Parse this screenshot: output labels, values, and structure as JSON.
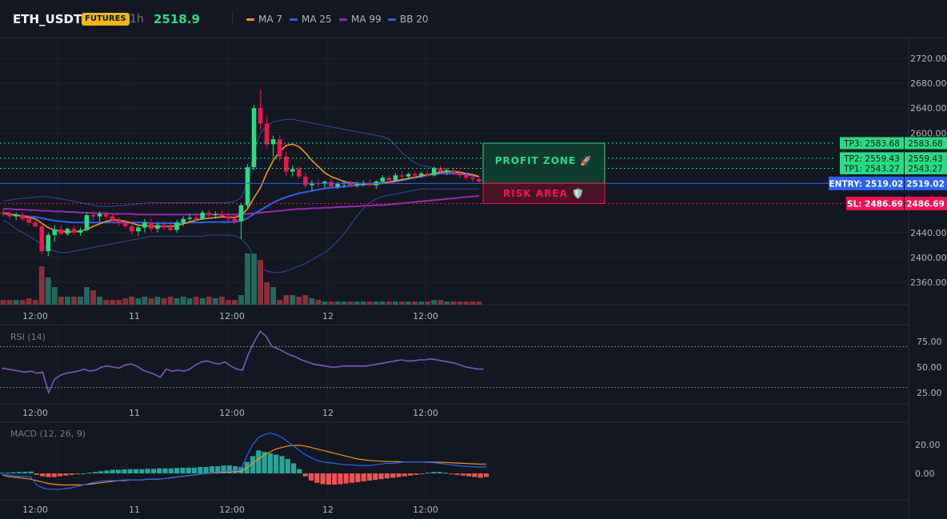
{
  "header": {
    "symbol": "ETH_USDT",
    "market_badge": "FUTURES",
    "interval": "1h",
    "last_price": "2518.9",
    "indicators": [
      {
        "label": "MA 7",
        "color": "#f7931a"
      },
      {
        "label": "MA 25",
        "color": "#2962ff"
      },
      {
        "label": "MA 99",
        "color": "#9c27b0"
      },
      {
        "label": "BB 20",
        "color": "#1e3a8a"
      }
    ]
  },
  "colors": {
    "background": "#131722",
    "up": "#26a69a",
    "up_bright": "#26de81",
    "down": "#ef5350",
    "down_bright": "#f6114f",
    "grid": "#1e2230",
    "entry": "#2962ff",
    "tp": "#26de81",
    "sl": "#f6114f"
  },
  "price_axis": {
    "ticks": [
      "2720.00",
      "2680.00",
      "2640.00",
      "2600.00",
      "2440.00",
      "2400.00",
      "2360.00"
    ],
    "tick_values": [
      2720,
      2680,
      2640,
      2600,
      2440,
      2400,
      2360
    ]
  },
  "time_axis": {
    "labels": [
      "12:00",
      "11",
      "12:00",
      "12",
      "12:00"
    ]
  },
  "trade": {
    "tp3_label": "TP3: 2583.68",
    "tp3_price": "2583.68",
    "tp3": 2583.68,
    "tp2_label": "TP2: 2559.43",
    "tp2_price": "2559.43",
    "tp2": 2559.43,
    "tp1_label": "TP1: 2543.27",
    "tp1_price": "2543.27",
    "tp1": 2543.27,
    "entry_label": "ENTRY: 2519.02",
    "entry_price": "2519.02",
    "entry": 2519.02,
    "sl_label": "SL: 2486.69",
    "sl_price": "2486.69",
    "sl": 2486.69,
    "profit_zone_label": "PROFIT ZONE 🚀",
    "risk_area_label": "RISK AREA 🛡️"
  },
  "rsi": {
    "title": "RSI (14)",
    "ticks": [
      "75.00",
      "50.00",
      "25.00"
    ],
    "overbought": 70,
    "oversold": 30,
    "values": [
      49,
      48,
      47,
      46,
      45,
      46,
      44,
      45,
      25,
      38,
      42,
      44,
      45,
      46,
      48,
      46,
      47,
      50,
      51,
      50,
      49,
      52,
      53,
      51,
      47,
      45,
      43,
      40,
      48,
      46,
      47,
      46,
      48,
      52,
      55,
      56,
      54,
      53,
      55,
      51,
      48,
      47,
      63,
      75,
      85,
      80,
      70,
      68,
      65,
      62,
      60,
      57,
      55,
      53,
      52,
      51,
      50,
      50,
      51,
      51,
      51,
      51,
      51,
      52,
      53,
      54,
      55,
      56,
      57,
      56,
      56,
      57,
      57,
      58,
      57,
      56,
      55,
      54,
      52,
      50,
      49,
      48,
      48
    ]
  },
  "macd": {
    "title": "MACD (12, 26, 9)",
    "ticks": [
      "20.00",
      "0.00"
    ],
    "macd_line": [
      -1,
      -1,
      -1.5,
      -2,
      -2,
      -2.5,
      -8,
      -10,
      -11,
      -11,
      -11,
      -10.5,
      -10,
      -9,
      -8,
      -7,
      -6,
      -5.5,
      -5,
      -5,
      -5,
      -4.5,
      -4.5,
      -4.5,
      -4.5,
      -4,
      -4,
      -4,
      -3.5,
      -3,
      -2.5,
      -2,
      -1.5,
      -1,
      -0.5,
      0,
      0.5,
      1,
      1.5,
      1.5,
      2,
      3,
      12,
      20,
      25,
      27,
      28,
      27,
      25,
      22,
      19,
      16,
      13,
      11,
      9,
      8,
      7.5,
      7,
      6.5,
      6,
      6,
      5.5,
      5.5,
      5.5,
      6,
      6.5,
      7,
      7,
      7.5,
      8,
      8,
      8,
      8,
      7.8,
      7.5,
      7,
      6.5,
      6,
      5.5,
      5,
      4.8,
      4.5,
      4.5,
      4.5
    ],
    "signal_line": [
      -1,
      -2,
      -2.5,
      -3,
      -3.5,
      -4,
      -5,
      -6,
      -7,
      -7.5,
      -8,
      -8,
      -8,
      -8,
      -8,
      -7.5,
      -7,
      -6.5,
      -6,
      -5.5,
      -5,
      -5,
      -4.5,
      -4.5,
      -4.5,
      -4,
      -4,
      -4,
      -3.5,
      -3,
      -2.5,
      -2,
      -1.5,
      -1,
      -0.5,
      0,
      0.3,
      0.6,
      1,
      1,
      1.2,
      1.5,
      4,
      7,
      10,
      13,
      15,
      17,
      18,
      19,
      19.5,
      19.5,
      19,
      18,
      17,
      16,
      15,
      14,
      13,
      12,
      11,
      10,
      9.5,
      9,
      8.8,
      8.5,
      8.3,
      8.2,
      8.1,
      8,
      8,
      8,
      8,
      8,
      7.9,
      7.8,
      7.6,
      7.4,
      7.2,
      7,
      6.8,
      6.6,
      6.5,
      6.5
    ],
    "histogram": [
      0.5,
      0.5,
      0.8,
      1,
      1.2,
      1.3,
      -1,
      -2,
      -2.5,
      -2.5,
      -2,
      -1.5,
      -1,
      -0.5,
      0,
      0.5,
      1,
      1.5,
      2,
      2.5,
      2.5,
      2.8,
      3,
      3,
      3,
      3.2,
      3.2,
      3.5,
      3.5,
      3.5,
      3.8,
      4,
      4,
      4,
      4.5,
      4.5,
      5,
      5,
      5.5,
      5.5,
      5,
      4.5,
      8,
      12,
      16,
      15,
      14,
      13,
      12,
      10,
      7,
      3,
      -2,
      -5,
      -6.5,
      -7.5,
      -7.8,
      -7.8,
      -7.5,
      -7,
      -6.5,
      -6,
      -5.5,
      -5,
      -4.5,
      -4,
      -3.5,
      -3,
      -2.5,
      -2,
      -1.5,
      -1,
      -0.5,
      0.5,
      1,
      1,
      0.5,
      -0.5,
      -1,
      -1.5,
      -2,
      -2.5,
      -3,
      -2.5
    ]
  },
  "candles": [
    {
      "o": 2472,
      "h": 2478,
      "l": 2466,
      "c": 2470
    },
    {
      "o": 2470,
      "h": 2475,
      "l": 2462,
      "c": 2466
    },
    {
      "o": 2466,
      "h": 2472,
      "l": 2460,
      "c": 2468
    },
    {
      "o": 2468,
      "h": 2472,
      "l": 2458,
      "c": 2462
    },
    {
      "o": 2462,
      "h": 2466,
      "l": 2452,
      "c": 2456
    },
    {
      "o": 2456,
      "h": 2460,
      "l": 2448,
      "c": 2450
    },
    {
      "o": 2450,
      "h": 2456,
      "l": 2405,
      "c": 2410
    },
    {
      "o": 2410,
      "h": 2440,
      "l": 2402,
      "c": 2436
    },
    {
      "o": 2436,
      "h": 2452,
      "l": 2425,
      "c": 2445
    },
    {
      "o": 2445,
      "h": 2452,
      "l": 2436,
      "c": 2438
    },
    {
      "o": 2438,
      "h": 2448,
      "l": 2435,
      "c": 2446
    },
    {
      "o": 2446,
      "h": 2452,
      "l": 2436,
      "c": 2440
    },
    {
      "o": 2440,
      "h": 2448,
      "l": 2435,
      "c": 2444
    },
    {
      "o": 2444,
      "h": 2472,
      "l": 2442,
      "c": 2468
    },
    {
      "o": 2468,
      "h": 2475,
      "l": 2460,
      "c": 2466
    },
    {
      "o": 2466,
      "h": 2474,
      "l": 2458,
      "c": 2470
    },
    {
      "o": 2470,
      "h": 2474,
      "l": 2462,
      "c": 2466
    },
    {
      "o": 2466,
      "h": 2470,
      "l": 2456,
      "c": 2460
    },
    {
      "o": 2460,
      "h": 2464,
      "l": 2450,
      "c": 2456
    },
    {
      "o": 2456,
      "h": 2460,
      "l": 2446,
      "c": 2450
    },
    {
      "o": 2450,
      "h": 2458,
      "l": 2436,
      "c": 2442
    },
    {
      "o": 2442,
      "h": 2452,
      "l": 2434,
      "c": 2448
    },
    {
      "o": 2448,
      "h": 2462,
      "l": 2440,
      "c": 2456
    },
    {
      "o": 2456,
      "h": 2462,
      "l": 2442,
      "c": 2446
    },
    {
      "o": 2446,
      "h": 2456,
      "l": 2440,
      "c": 2452
    },
    {
      "o": 2452,
      "h": 2458,
      "l": 2444,
      "c": 2448
    },
    {
      "o": 2448,
      "h": 2456,
      "l": 2442,
      "c": 2444
    },
    {
      "o": 2444,
      "h": 2460,
      "l": 2440,
      "c": 2456
    },
    {
      "o": 2456,
      "h": 2466,
      "l": 2450,
      "c": 2462
    },
    {
      "o": 2462,
      "h": 2470,
      "l": 2456,
      "c": 2464
    },
    {
      "o": 2464,
      "h": 2470,
      "l": 2458,
      "c": 2462
    },
    {
      "o": 2462,
      "h": 2476,
      "l": 2460,
      "c": 2472
    },
    {
      "o": 2472,
      "h": 2476,
      "l": 2464,
      "c": 2468
    },
    {
      "o": 2468,
      "h": 2474,
      "l": 2462,
      "c": 2470
    },
    {
      "o": 2470,
      "h": 2476,
      "l": 2464,
      "c": 2466
    },
    {
      "o": 2466,
      "h": 2472,
      "l": 2458,
      "c": 2462
    },
    {
      "o": 2462,
      "h": 2468,
      "l": 2454,
      "c": 2458
    },
    {
      "o": 2458,
      "h": 2488,
      "l": 2430,
      "c": 2484
    },
    {
      "o": 2484,
      "h": 2550,
      "l": 2478,
      "c": 2545
    },
    {
      "o": 2545,
      "h": 2645,
      "l": 2540,
      "c": 2640
    },
    {
      "o": 2640,
      "h": 2670,
      "l": 2605,
      "c": 2615
    },
    {
      "o": 2615,
      "h": 2628,
      "l": 2575,
      "c": 2582
    },
    {
      "o": 2582,
      "h": 2596,
      "l": 2562,
      "c": 2590
    },
    {
      "o": 2590,
      "h": 2596,
      "l": 2555,
      "c": 2562
    },
    {
      "o": 2562,
      "h": 2570,
      "l": 2530,
      "c": 2538
    },
    {
      "o": 2538,
      "h": 2548,
      "l": 2530,
      "c": 2542
    },
    {
      "o": 2542,
      "h": 2546,
      "l": 2526,
      "c": 2530
    },
    {
      "o": 2530,
      "h": 2536,
      "l": 2512,
      "c": 2516
    },
    {
      "o": 2516,
      "h": 2524,
      "l": 2508,
      "c": 2520
    },
    {
      "o": 2520,
      "h": 2526,
      "l": 2514,
      "c": 2518
    },
    {
      "o": 2518,
      "h": 2524,
      "l": 2512,
      "c": 2522
    },
    {
      "o": 2522,
      "h": 2526,
      "l": 2512,
      "c": 2514
    },
    {
      "o": 2514,
      "h": 2522,
      "l": 2510,
      "c": 2518
    },
    {
      "o": 2518,
      "h": 2524,
      "l": 2512,
      "c": 2520
    },
    {
      "o": 2520,
      "h": 2524,
      "l": 2512,
      "c": 2516
    },
    {
      "o": 2516,
      "h": 2522,
      "l": 2512,
      "c": 2518
    },
    {
      "o": 2518,
      "h": 2524,
      "l": 2514,
      "c": 2520
    },
    {
      "o": 2520,
      "h": 2526,
      "l": 2514,
      "c": 2516
    },
    {
      "o": 2516,
      "h": 2524,
      "l": 2510,
      "c": 2522
    },
    {
      "o": 2522,
      "h": 2532,
      "l": 2518,
      "c": 2528
    },
    {
      "o": 2528,
      "h": 2532,
      "l": 2520,
      "c": 2524
    },
    {
      "o": 2524,
      "h": 2536,
      "l": 2522,
      "c": 2532
    },
    {
      "o": 2532,
      "h": 2538,
      "l": 2526,
      "c": 2530
    },
    {
      "o": 2530,
      "h": 2536,
      "l": 2526,
      "c": 2534
    },
    {
      "o": 2534,
      "h": 2538,
      "l": 2528,
      "c": 2532
    },
    {
      "o": 2532,
      "h": 2538,
      "l": 2528,
      "c": 2535
    },
    {
      "o": 2535,
      "h": 2540,
      "l": 2530,
      "c": 2532
    },
    {
      "o": 2532,
      "h": 2546,
      "l": 2530,
      "c": 2543
    },
    {
      "o": 2543,
      "h": 2548,
      "l": 2536,
      "c": 2538
    },
    {
      "o": 2538,
      "h": 2544,
      "l": 2532,
      "c": 2540
    },
    {
      "o": 2540,
      "h": 2544,
      "l": 2532,
      "c": 2536
    },
    {
      "o": 2536,
      "h": 2540,
      "l": 2528,
      "c": 2532
    },
    {
      "o": 2532,
      "h": 2536,
      "l": 2524,
      "c": 2528
    },
    {
      "o": 2528,
      "h": 2532,
      "l": 2522,
      "c": 2526
    },
    {
      "o": 2526,
      "h": 2530,
      "l": 2520,
      "c": 2522
    }
  ],
  "volumes": [
    3,
    3,
    3,
    3,
    4,
    3,
    24,
    17,
    11,
    5,
    5,
    5,
    5,
    11,
    9,
    5,
    3,
    3,
    3,
    4,
    5,
    4,
    5,
    4,
    5,
    4,
    5,
    4,
    5,
    4,
    5,
    4,
    5,
    4,
    5,
    3,
    3,
    6,
    32,
    32,
    28,
    14,
    11,
    3,
    6,
    6,
    5,
    6,
    4,
    3,
    2,
    2,
    2,
    2,
    2,
    2,
    2,
    2,
    2,
    2,
    2,
    2,
    2,
    2,
    2,
    2,
    2,
    3,
    3,
    2,
    2,
    2,
    2,
    2,
    2
  ],
  "ma7": [
    2472,
    2470,
    2468,
    2466,
    2464,
    2462,
    2455,
    2448,
    2444,
    2442,
    2441,
    2441,
    2442,
    2445,
    2450,
    2454,
    2458,
    2460,
    2460,
    2458,
    2455,
    2452,
    2451,
    2450,
    2450,
    2450,
    2450,
    2451,
    2454,
    2457,
    2460,
    2462,
    2463,
    2464,
    2465,
    2465,
    2464,
    2468,
    2478,
    2496,
    2512,
    2536,
    2556,
    2570,
    2580,
    2582,
    2578,
    2568,
    2556,
    2546,
    2536,
    2530,
    2526,
    2522,
    2520,
    2519,
    2518,
    2518,
    2518,
    2519,
    2521,
    2523,
    2525,
    2527,
    2529,
    2531,
    2533,
    2535,
    2537,
    2538,
    2538,
    2537,
    2535,
    2533,
    2530
  ],
  "ma25": [
    2470,
    2469,
    2468,
    2467,
    2466,
    2465,
    2463,
    2461,
    2459,
    2458,
    2457,
    2456,
    2456,
    2456,
    2456,
    2456,
    2456,
    2456,
    2456,
    2456,
    2456,
    2456,
    2456,
    2455,
    2455,
    2455,
    2455,
    2455,
    2455,
    2456,
    2456,
    2456,
    2457,
    2457,
    2457,
    2457,
    2457,
    2459,
    2463,
    2470,
    2476,
    2482,
    2488,
    2493,
    2497,
    2500,
    2503,
    2505,
    2507,
    2509,
    2511,
    2512,
    2513,
    2514,
    2515,
    2516,
    2517,
    2518,
    2519,
    2520,
    2521,
    2522,
    2524,
    2526,
    2528,
    2530,
    2532,
    2534,
    2535,
    2535,
    2535,
    2534,
    2533,
    2531,
    2530
  ],
  "ma99": [
    2478,
    2478,
    2477,
    2477,
    2476,
    2476,
    2475,
    2475,
    2474,
    2474,
    2473,
    2473,
    2472,
    2472,
    2471,
    2471,
    2471,
    2470,
    2470,
    2470,
    2470,
    2469,
    2469,
    2469,
    2469,
    2469,
    2469,
    2469,
    2469,
    2469,
    2469,
    2469,
    2469,
    2469,
    2469,
    2469,
    2469,
    2469,
    2470,
    2471,
    2472,
    2473,
    2474,
    2475,
    2476,
    2477,
    2478,
    2478,
    2479,
    2479,
    2480,
    2480,
    2481,
    2481,
    2482,
    2482,
    2483,
    2483,
    2484,
    2484,
    2485,
    2486,
    2487,
    2488,
    2489,
    2490,
    2491,
    2492,
    2493,
    2494,
    2495,
    2496,
    2497,
    2498,
    2499
  ],
  "bb_upper": [
    2490,
    2492,
    2494,
    2495,
    2496,
    2497,
    2498,
    2497,
    2496,
    2494,
    2492,
    2490,
    2488,
    2486,
    2484,
    2482,
    2482,
    2482,
    2483,
    2484,
    2485,
    2486,
    2487,
    2488,
    2488,
    2488,
    2488,
    2488,
    2488,
    2488,
    2488,
    2488,
    2488,
    2488,
    2488,
    2488,
    2490,
    2496,
    2520,
    2570,
    2600,
    2612,
    2618,
    2620,
    2622,
    2622,
    2620,
    2618,
    2616,
    2614,
    2612,
    2610,
    2608,
    2606,
    2604,
    2602,
    2600,
    2598,
    2596,
    2594,
    2590,
    2580,
    2568,
    2560,
    2552,
    2548,
    2546,
    2544,
    2542,
    2540,
    2538,
    2536,
    2534,
    2532,
    2530
  ],
  "bb_lower": [
    2460,
    2454,
    2446,
    2440,
    2434,
    2428,
    2420,
    2414,
    2410,
    2408,
    2408,
    2410,
    2412,
    2414,
    2416,
    2418,
    2420,
    2422,
    2424,
    2426,
    2428,
    2430,
    2432,
    2434,
    2434,
    2434,
    2434,
    2434,
    2434,
    2434,
    2434,
    2434,
    2436,
    2436,
    2436,
    2436,
    2435,
    2430,
    2420,
    2400,
    2384,
    2378,
    2376,
    2376,
    2378,
    2382,
    2386,
    2390,
    2396,
    2402,
    2408,
    2416,
    2426,
    2438,
    2452,
    2466,
    2478,
    2488,
    2494,
    2498,
    2500,
    2502,
    2504,
    2506,
    2508,
    2510,
    2510,
    2510,
    2510,
    2510,
    2510,
    2510,
    2510,
    2510,
    2510
  ]
}
